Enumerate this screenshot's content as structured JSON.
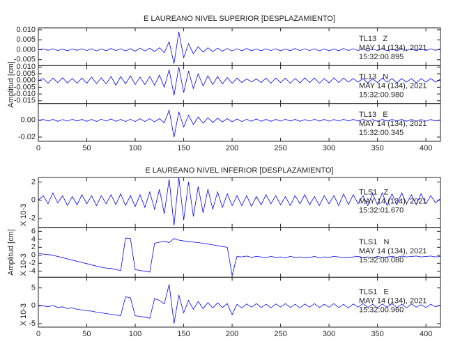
{
  "chart_data": [
    {
      "type": "line",
      "title": "E LAUREANO NIVEL SUPERIOR [DESPLAZAMIENTO]",
      "ylabel": "Amplitud [cm]",
      "color": "#0000ff",
      "xlim": [
        0,
        415
      ],
      "xticks": [
        0,
        50,
        100,
        150,
        200,
        250,
        300,
        350,
        400
      ],
      "x": [
        0,
        5,
        10,
        15,
        20,
        25,
        30,
        35,
        40,
        45,
        50,
        55,
        60,
        65,
        70,
        75,
        80,
        85,
        90,
        95,
        100,
        105,
        110,
        115,
        120,
        125,
        130,
        135,
        140,
        145,
        150,
        155,
        160,
        165,
        170,
        175,
        180,
        185,
        190,
        195,
        200,
        205,
        210,
        215,
        220,
        225,
        230,
        235,
        240,
        245,
        250,
        255,
        260,
        265,
        270,
        275,
        280,
        285,
        290,
        295,
        300,
        305,
        310,
        315,
        320,
        325,
        330,
        335,
        340,
        345,
        350,
        355,
        360,
        365,
        370,
        375,
        380,
        385,
        390,
        395,
        400,
        405,
        410,
        415
      ],
      "subplots": [
        {
          "station": "TL13   Z",
          "date": "MAY 14 (134), 2021",
          "time": "15:32:00.895",
          "ylim": [
            -0.008,
            0.011
          ],
          "yticks": [
            {
              "value": -0.005,
              "label": "-0.005"
            },
            {
              "value": 0,
              "label": "0.000"
            },
            {
              "value": 0.005,
              "label": "0.005"
            },
            {
              "value": 0.01,
              "label": "0.010"
            }
          ],
          "values": [
            0,
            0.0004,
            -0.0003,
            0.0005,
            -0.0004,
            0.0003,
            -0.0005,
            0.0004,
            -0.0003,
            0.0005,
            -0.0004,
            0.0005,
            -0.0006,
            0.0004,
            -0.0005,
            0.0006,
            -0.0004,
            0.0005,
            -0.0006,
            0.0005,
            -0.0007,
            0.0008,
            -0.0006,
            0.0007,
            -0.0009,
            0.001,
            -0.0015,
            0.004,
            -0.007,
            0.009,
            -0.004,
            0.003,
            -0.002,
            0.0015,
            -0.0012,
            0.001,
            -0.0009,
            0.0008,
            -0.0007,
            0.0006,
            -0.0006,
            0.0005,
            -0.0005,
            0.0006,
            -0.0005,
            0.0004,
            -0.0005,
            0.0005,
            -0.0004,
            0.0005,
            -0.0005,
            0.0004,
            -0.0005,
            0.0006,
            -0.0004,
            0.0005,
            -0.0004,
            0.0005,
            -0.0006,
            0.0004,
            -0.0005,
            0.0004,
            -0.0005,
            0.0006,
            -0.0004,
            0.0005,
            -0.0004,
            0.0005,
            -0.0006,
            0.0004,
            -0.0004,
            0.0005,
            -0.0005,
            0.0004,
            -0.0006,
            0.0005,
            -0.0004,
            0.0005,
            -0.0005,
            0.0004,
            -0.0004,
            0.0005,
            -0.0003,
            0.0004
          ]
        },
        {
          "station": "TL13   N",
          "date": "MAY 14 (134), 2021",
          "time": "15:32:00.980",
          "ylim": [
            -0.017,
            0.011
          ],
          "yticks": [
            {
              "value": -0.015,
              "label": "-0.015"
            },
            {
              "value": -0.01,
              "label": "-0.010"
            },
            {
              "value": -0.005,
              "label": "-0.005"
            },
            {
              "value": 0,
              "label": "0.000"
            },
            {
              "value": 0.005,
              "label": "0.005"
            },
            {
              "value": 0.01,
              "label": "0.010"
            }
          ],
          "values": [
            0,
            0.0015,
            -0.002,
            0.0018,
            -0.0015,
            0.002,
            -0.0018,
            0.0015,
            -0.002,
            0.0018,
            -0.002,
            0.0025,
            -0.0022,
            0.002,
            -0.0025,
            0.003,
            -0.0035,
            0.003,
            -0.0025,
            0.0035,
            -0.003,
            0.0025,
            -0.003,
            0.003,
            -0.0035,
            0.004,
            -0.005,
            0.008,
            -0.011,
            0.01,
            -0.009,
            0.007,
            -0.006,
            0.005,
            -0.004,
            0.0035,
            -0.003,
            0.003,
            -0.0025,
            0.0022,
            -0.002,
            0.0018,
            -0.0015,
            0.0012,
            -0.001,
            0.0012,
            -0.0015,
            0.0018,
            -0.002,
            0.0018,
            -0.0015,
            0.0018,
            -0.002,
            0.0015,
            -0.0018,
            0.002,
            -0.0015,
            0.0018,
            -0.002,
            0.0015,
            -0.0018,
            0.002,
            -0.0015,
            0.0018,
            -0.0012,
            0.0015,
            -0.0012,
            0.0015,
            -0.0018,
            0.0012,
            -0.0015,
            0.0018,
            -0.0012,
            0.0015,
            -0.0018,
            0.0015,
            -0.0012,
            0.0015,
            -0.0018,
            0.0015,
            -0.0012,
            0.0015,
            -0.0012,
            0.001
          ]
        },
        {
          "station": "TL13   E",
          "date": "MAY 14 (134), 2021",
          "time": "15:32:00.345",
          "ylim": [
            -0.025,
            0.02
          ],
          "yticks": [
            -0.02,
            {
              "value": 0,
              "label": "0.00"
            }
          ],
          "values": [
            0,
            0.001,
            -0.0008,
            0.001,
            -0.0012,
            0.0008,
            -0.001,
            0.0012,
            -0.0008,
            0.001,
            -0.0012,
            0.001,
            -0.0015,
            0.0012,
            -0.001,
            0.0015,
            -0.0012,
            0.001,
            -0.0015,
            0.0012,
            -0.0015,
            0.0018,
            -0.0015,
            0.0018,
            -0.002,
            0.002,
            -0.003,
            0.012,
            -0.02,
            0.01,
            -0.008,
            0.006,
            -0.005,
            0.004,
            -0.0035,
            0.003,
            -0.0025,
            0.0025,
            -0.002,
            0.002,
            -0.0018,
            0.0015,
            -0.0015,
            0.0012,
            -0.0012,
            0.0015,
            -0.0012,
            0.001,
            -0.0012,
            0.001,
            -0.001,
            0.0012,
            -0.0008,
            0.001,
            -0.0012,
            0.0008,
            -0.001,
            0.0012,
            -0.0009,
            0.001,
            -0.0011,
            0.0009,
            -0.001,
            0.0012,
            -0.0008,
            0.001,
            -0.0009,
            0.0011,
            -0.001,
            0.0008,
            -0.0012,
            0.001,
            -0.0009,
            0.0011,
            -0.0008,
            0.001,
            -0.0012,
            0.0009,
            -0.001,
            0.0008,
            -0.001,
            0.0009,
            -0.0008,
            0.0006
          ]
        }
      ]
    },
    {
      "type": "line",
      "title": "E LAUREANO NIVEL INFERIOR [DESPLAZAMIENTO]",
      "ylabel": "Amplitud [cm]",
      "color": "#0000ff",
      "xlim": [
        0,
        415
      ],
      "xticks": [
        0,
        50,
        100,
        150,
        200,
        250,
        300,
        350,
        400
      ],
      "x": [
        0,
        5,
        10,
        15,
        20,
        25,
        30,
        35,
        40,
        45,
        50,
        55,
        60,
        65,
        70,
        75,
        80,
        85,
        90,
        95,
        100,
        105,
        110,
        115,
        120,
        125,
        130,
        135,
        140,
        145,
        150,
        155,
        160,
        165,
        170,
        175,
        180,
        185,
        190,
        195,
        200,
        205,
        210,
        215,
        220,
        225,
        230,
        235,
        240,
        245,
        250,
        255,
        260,
        265,
        270,
        275,
        280,
        285,
        290,
        295,
        300,
        305,
        310,
        315,
        320,
        325,
        330,
        335,
        340,
        345,
        350,
        355,
        360,
        365,
        370,
        375,
        380,
        385,
        390,
        395,
        400,
        405,
        410,
        415
      ],
      "subplots": [
        {
          "station": "TLS1   Z",
          "date": "MAY 14 (134), 2021",
          "time": "15:32:01.670",
          "scale_label": "X 10-3",
          "ylim": [
            -3,
            2.5
          ],
          "yticks": [
            -2,
            0,
            2
          ],
          "values": [
            0,
            0.5,
            -0.4,
            0.8,
            -0.3,
            0.5,
            -0.6,
            0.4,
            -0.5,
            0.6,
            -0.4,
            0.5,
            -0.6,
            0.5,
            -0.4,
            0.6,
            -0.5,
            0.7,
            -0.6,
            0.5,
            -0.7,
            0.6,
            -0.8,
            0.9,
            -1,
            1.2,
            -1.5,
            2.3,
            -2.8,
            2.5,
            -2.2,
            2,
            -1.8,
            1.5,
            -1.4,
            1.2,
            -1,
            0.9,
            -0.8,
            0.7,
            -0.6,
            0.5,
            -0.6,
            0.5,
            -0.7,
            0.4,
            -0.5,
            0.6,
            -0.4,
            0.5,
            -0.5,
            0.4,
            -0.6,
            0.5,
            -0.4,
            0.6,
            -0.5,
            0.4,
            -0.6,
            0.5,
            -0.4,
            0.5,
            -0.6,
            0.7,
            -0.5,
            0.6,
            -0.4,
            0.5,
            -0.6,
            0.7,
            -0.5,
            0.8,
            -0.6,
            0.7,
            -0.5,
            0.8,
            -0.4,
            0.6,
            -0.5,
            0.7,
            -0.4,
            0.5,
            -0.3,
            0.2
          ]
        },
        {
          "station": "TLS1   N",
          "date": "MAY 14 (134), 2021",
          "time": "15:32:00.080",
          "scale_label": "X 10-3",
          "ylim": [
            -5.5,
            7
          ],
          "yticks": [
            -4,
            -2,
            0,
            2,
            4,
            6
          ],
          "values": [
            0.5,
            0.3,
            0.2,
            0,
            -0.3,
            -0.6,
            -0.9,
            -1.2,
            -1.5,
            -1.8,
            -2.1,
            -2.4,
            -2.7,
            -3,
            -3.2,
            -3.3,
            -3.6,
            -3.8,
            4.3,
            4.2,
            -3.6,
            -3.8,
            -4,
            -4.2,
            3,
            3.3,
            3.5,
            3.2,
            4.2,
            3.8,
            3.6,
            3.5,
            3.3,
            3.2,
            3,
            2.8,
            2.6,
            2.4,
            2.2,
            2,
            -5,
            -0.3,
            -0.4,
            -0.2,
            -0.5,
            -0.3,
            -0.4,
            -0.6,
            -0.3,
            -0.5,
            -0.4,
            -0.6,
            -0.3,
            -0.5,
            -0.4,
            -0.6,
            -0.5,
            -0.3,
            -0.6,
            -0.4,
            -0.5,
            -0.3,
            -0.4,
            -0.6,
            -0.5,
            -0.4,
            -0.3,
            -0.5,
            -0.4,
            -0.6,
            -0.3,
            -0.5,
            -0.4,
            -0.3,
            -0.5,
            -0.2,
            -0.4,
            -0.3,
            -0.2,
            -0.4,
            -0.3,
            -0.2,
            -0.4,
            -0.3
          ]
        },
        {
          "station": "TLS1   E",
          "date": "MAY 14 (134), 2021",
          "time": "15:32:00.960",
          "scale_label": "X 10-3",
          "ylim": [
            -6,
            8
          ],
          "yticks": [
            -5,
            0,
            5
          ],
          "values": [
            0.2,
            0,
            -0.3,
            0.1,
            -0.5,
            -0.3,
            -0.8,
            -0.6,
            -1,
            -1.2,
            -1.4,
            -1.5,
            -1.8,
            -2,
            -2.2,
            -2.4,
            -2.6,
            -2.8,
            2.5,
            2.2,
            -2.8,
            -3,
            -3.2,
            -3.5,
            2,
            1.5,
            0.5,
            6,
            -5,
            3,
            -2,
            1.5,
            -1,
            1.2,
            -0.8,
            0.9,
            -0.6,
            0.8,
            -0.5,
            0.6,
            -2.5,
            0.4,
            -0.6,
            0.5,
            -0.4,
            0.6,
            -0.5,
            0.4,
            -0.6,
            0.5,
            -0.4,
            0.6,
            -0.5,
            0.4,
            -0.6,
            0.5,
            -0.4,
            0.6,
            -0.5,
            0.4,
            -0.4,
            0.6,
            -0.5,
            0.4,
            -0.6,
            0.5,
            -0.4,
            0.6,
            -0.5,
            0.4,
            -0.6,
            0.5,
            -0.4,
            0.6,
            -0.5,
            0.4,
            -0.6,
            0.5,
            -0.4,
            0.3,
            -0.5,
            0.4,
            -0.3,
            0.2
          ]
        }
      ]
    }
  ]
}
